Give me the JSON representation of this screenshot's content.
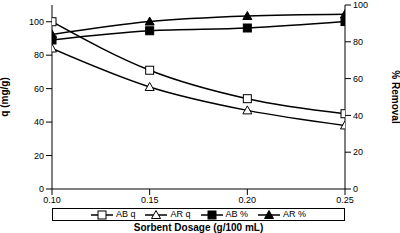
{
  "chart_data": {
    "type": "line",
    "x_label": "Sorbent Dosage (g/100 mL)",
    "y_label": "q (mg/g)",
    "y2_label": "% Removal",
    "x": [
      0.1,
      0.15,
      0.2,
      0.25
    ],
    "xlim": [
      0.1,
      0.25
    ],
    "xticks": [
      {
        "value": 0.1,
        "label": "0.10"
      },
      {
        "value": 0.15,
        "label": "0.15"
      },
      {
        "value": 0.2,
        "label": "0.20"
      },
      {
        "value": 0.25,
        "label": "0.25"
      }
    ],
    "ylim": [
      0,
      110
    ],
    "yticks": [
      0,
      20,
      40,
      60,
      80,
      100
    ],
    "y2lim": [
      0,
      100
    ],
    "y2ticks": [
      0,
      20,
      40,
      60,
      80,
      100
    ],
    "grid": false,
    "legend": "bottom",
    "series": [
      {
        "name": "AB q",
        "color": "#000000",
        "marker": "square_open",
        "values": [
          100,
          71,
          54,
          45
        ]
      },
      {
        "name": "AR q",
        "color": "#000000",
        "marker": "triangle_open",
        "values": [
          84,
          61,
          47,
          38
        ]
      },
      {
        "name": "AB %",
        "color": "#000000",
        "marker": "square",
        "axis": "y2",
        "values": [
          81,
          86,
          87.5,
          91
        ]
      },
      {
        "name": "AR %",
        "color": "#000000",
        "marker": "triangle",
        "axis": "y2",
        "values": [
          84,
          91,
          94,
          95
        ]
      }
    ]
  }
}
